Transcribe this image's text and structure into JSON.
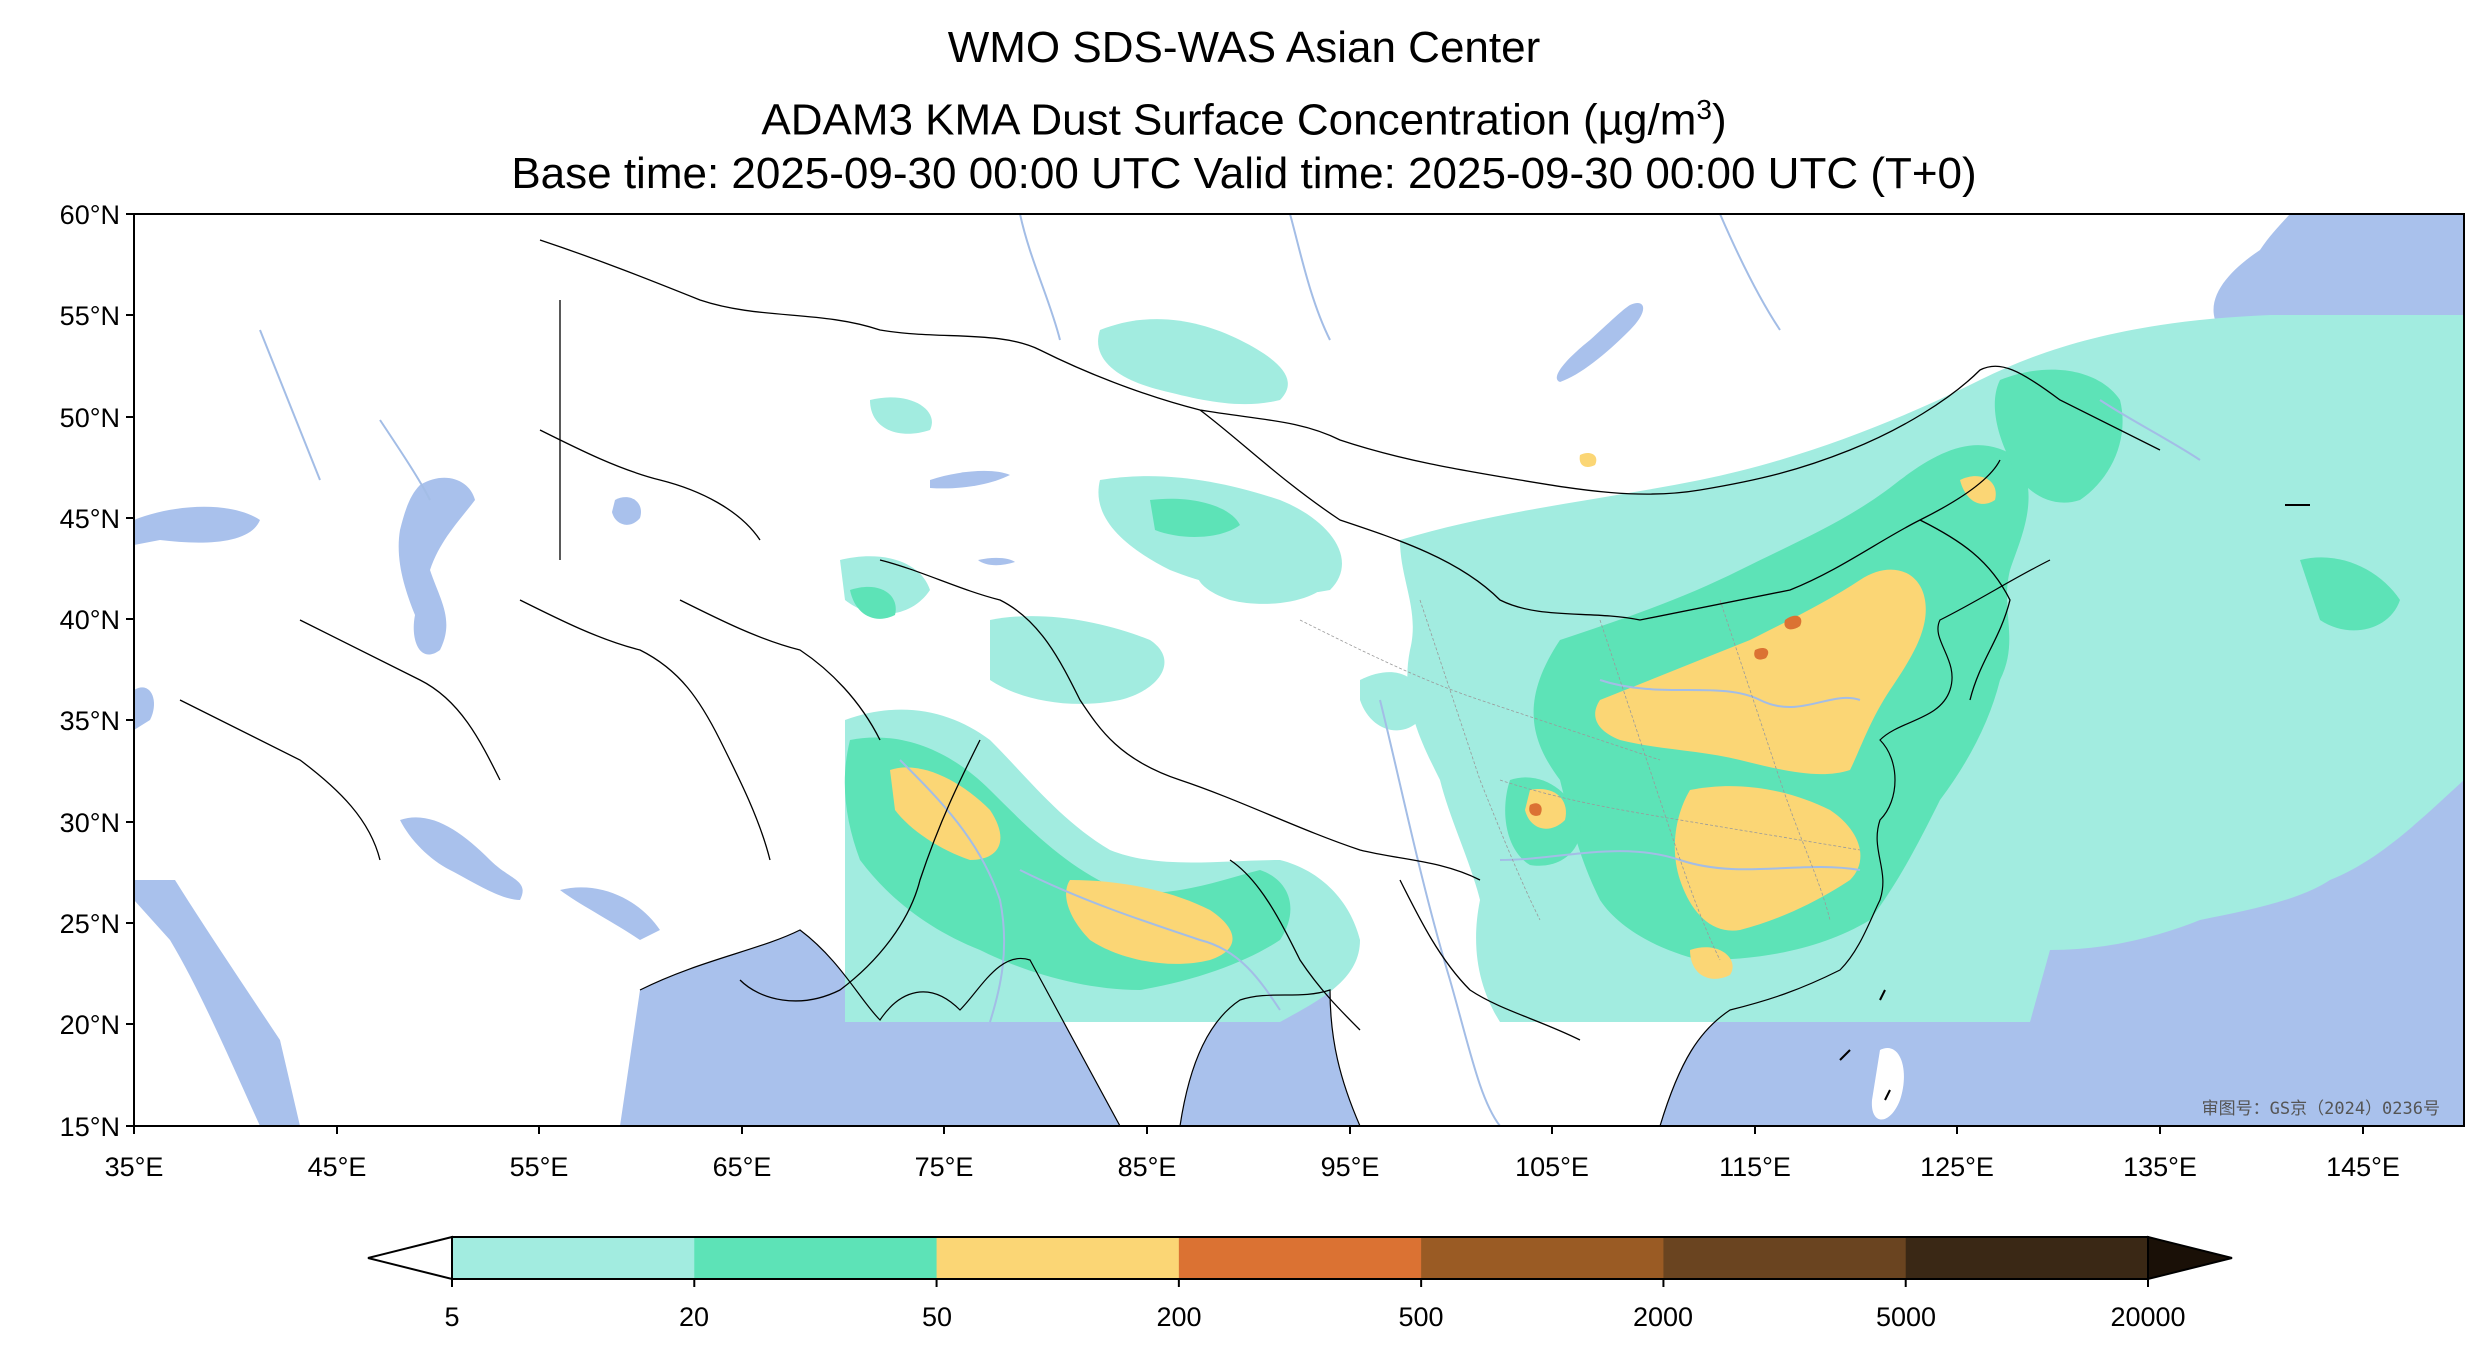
{
  "title": {
    "line1": "WMO SDS-WAS Asian Center",
    "line2_prefix": "ADAM3 KMA Dust Surface Concentration (",
    "line2_unit": "µg/m",
    "line2_sup": "3",
    "line2_suffix": ")",
    "line3": "Base time: 2025-09-30 00:00 UTC Valid time: 2025-09-30 00:00 UTC (T+0)"
  },
  "axes": {
    "lat_labels": [
      "60°N",
      "55°N",
      "50°N",
      "45°N",
      "40°N",
      "35°N",
      "30°N",
      "25°N",
      "20°N",
      "15°N"
    ],
    "lon_labels": [
      "35°E",
      "45°E",
      "55°E",
      "65°E",
      "75°E",
      "85°E",
      "95°E",
      "105°E",
      "115°E",
      "125°E",
      "135°E",
      "145°E"
    ],
    "lat_range": [
      15,
      60
    ],
    "lon_range": [
      35,
      150
    ]
  },
  "colorbar": {
    "levels": [
      "5",
      "20",
      "50",
      "200",
      "500",
      "2000",
      "5000",
      "20000"
    ],
    "colors": [
      "#a2ece0",
      "#5de3b7",
      "#fbd675",
      "#db7233",
      "#9a5b24",
      "#6a4420",
      "#3a2815",
      "#1a1007"
    ],
    "extend": "both"
  },
  "colors": {
    "ocean": "#a9c1ec",
    "land": "#ffffff",
    "border": "#000000",
    "river": "#a3bde6",
    "c1": "#a2ece0",
    "c2": "#5de3b7",
    "c3": "#fbd675",
    "c4": "#db7233"
  },
  "stamp": "审图号：GS京（2024）0236号"
}
